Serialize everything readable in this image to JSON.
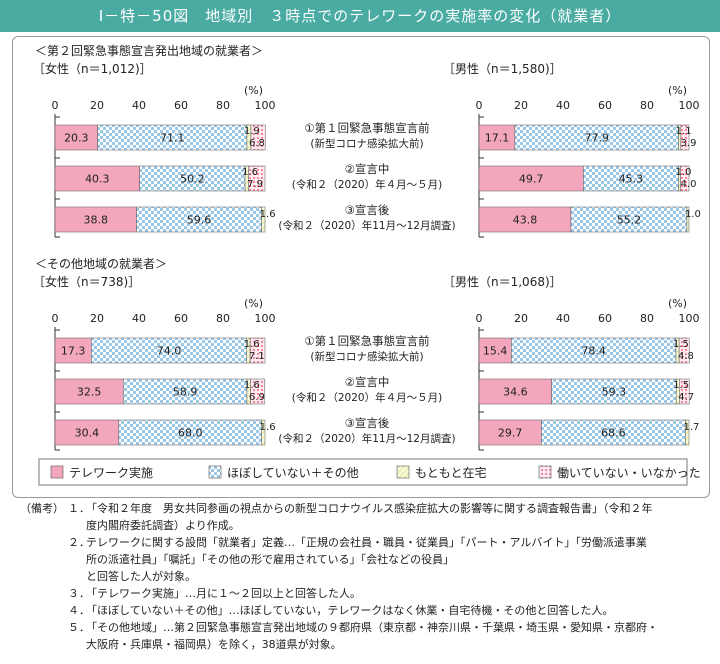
{
  "title": "Ⅰ－特－50図　地域別　３時点でのテレワークの実施率の変化（就業者）",
  "chart_data": {
    "type": "bar",
    "stacked": "horizontal-100",
    "percent_unit": "(%)",
    "axis": {
      "min": 0,
      "max": 100,
      "ticks": [
        "0",
        "20",
        "40",
        "60",
        "80",
        "100"
      ]
    },
    "colors": {
      "telework": "#f2a7bd",
      "hobo": "#b9d8ee",
      "motomoto": "#eef3bd",
      "hataraite": "#f9d5de"
    },
    "categories": [
      {
        "line1": "①第１回緊急事態宣言前",
        "line2": "(新型コロナ感染拡大前)"
      },
      {
        "line1": "②宣言中",
        "line2": "(令和２（2020）年４月～５月)"
      },
      {
        "line1": "③宣言後",
        "line2": "(令和２（2020）年11月～12月調査)"
      }
    ],
    "legend": [
      {
        "key": "telework",
        "label": "テレワーク実施"
      },
      {
        "key": "hobo",
        "label": "ほぼしていない＋その他"
      },
      {
        "key": "motomoto",
        "label": "もともと在宅"
      },
      {
        "key": "hataraite",
        "label": "働いていない・いなかった"
      }
    ],
    "sections": [
      {
        "heading": "＜第２回緊急事態宣言発出地域の就業者＞",
        "panels": [
          {
            "label": "［女性（n＝1,012)］",
            "bars": [
              {
                "values": [
                  20.3,
                  71.1,
                  1.9,
                  6.8
                ],
                "labels": [
                  "20.3",
                  "71.1",
                  "1.9",
                  "6.8"
                ]
              },
              {
                "values": [
                  40.3,
                  50.2,
                  1.6,
                  7.9
                ],
                "labels": [
                  "40.3",
                  "50.2",
                  "1.6",
                  "7.9"
                ]
              },
              {
                "values": [
                  38.8,
                  59.6,
                  1.6,
                  0
                ],
                "labels": [
                  "38.8",
                  "59.6",
                  "1.6",
                  ""
                ]
              }
            ]
          },
          {
            "label": "［男性（n＝1,580)］",
            "bars": [
              {
                "values": [
                  17.1,
                  77.9,
                  1.1,
                  3.9
                ],
                "labels": [
                  "17.1",
                  "77.9",
                  "1.1",
                  "3.9"
                ]
              },
              {
                "values": [
                  49.7,
                  45.3,
                  1.0,
                  4.0
                ],
                "labels": [
                  "49.7",
                  "45.3",
                  "1.0",
                  "4.0"
                ]
              },
              {
                "values": [
                  43.8,
                  55.2,
                  1.0,
                  0
                ],
                "labels": [
                  "43.8",
                  "55.2",
                  "1.0",
                  ""
                ]
              }
            ]
          }
        ]
      },
      {
        "heading": "＜その他地域の就業者＞",
        "panels": [
          {
            "label": "［女性（n＝738)］",
            "bars": [
              {
                "values": [
                  17.3,
                  74.0,
                  1.6,
                  7.1
                ],
                "labels": [
                  "17.3",
                  "74.0",
                  "1.6",
                  "7.1"
                ]
              },
              {
                "values": [
                  32.5,
                  58.9,
                  1.6,
                  6.9
                ],
                "labels": [
                  "32.5",
                  "58.9",
                  "1.6",
                  "6.9"
                ]
              },
              {
                "values": [
                  30.4,
                  68.0,
                  1.6,
                  0
                ],
                "labels": [
                  "30.4",
                  "68.0",
                  "1.6",
                  ""
                ]
              }
            ]
          },
          {
            "label": "［男性（n＝1,068)］",
            "bars": [
              {
                "values": [
                  15.4,
                  78.4,
                  1.5,
                  4.8
                ],
                "labels": [
                  "15.4",
                  "78.4",
                  "1.5",
                  "4.8"
                ]
              },
              {
                "values": [
                  34.6,
                  59.3,
                  1.5,
                  4.7
                ],
                "labels": [
                  "34.6",
                  "59.3",
                  "1.5",
                  "4.7"
                ]
              },
              {
                "values": [
                  29.7,
                  68.6,
                  1.7,
                  0
                ],
                "labels": [
                  "29.7",
                  "68.6",
                  "1.7",
                  ""
                ]
              }
            ]
          }
        ]
      }
    ]
  },
  "notes": {
    "label": "（備考）",
    "items": [
      {
        "num": "１．",
        "lines": [
          "「令和２年度　男女共同参画の視点からの新型コロナウイルス感染症拡大の影響等に関する調査報告書」（令和２年",
          "度内閣府委託調査）より作成。"
        ]
      },
      {
        "num": "２．",
        "lines": [
          "テレワークに関する設問「就業者」定義…「正規の会社員・職員・従業員」「パート・アルバイト」「労働派遣事業",
          "所の派遣社員」「嘱託」「その他の形で雇用されている」「会社などの役員」",
          "と回答した人が対象。"
        ]
      },
      {
        "num": "３．",
        "lines": [
          "「テレワーク実施」…月に１～２回以上と回答した人。"
        ]
      },
      {
        "num": "４．",
        "lines": [
          "「ほぼしていない＋その他」…ほぼしていない，テレワークはなく休業・自宅待機・その他と回答した人。"
        ]
      },
      {
        "num": "５．",
        "lines": [
          "「その他地域」…第２回緊急事態宣言発出地域の９都府県（東京都・神奈川県・千葉県・埼玉県・愛知県・京都府・",
          "大阪府・兵庫県・福岡県）を除く，38道県が対象。"
        ]
      }
    ]
  }
}
